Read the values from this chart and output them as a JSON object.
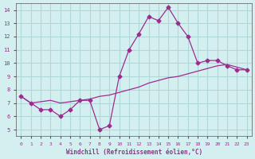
{
  "xlabel": "Windchill (Refroidissement éolien,°C)",
  "background_color": "#d4eff0",
  "grid_color": "#b0d8d8",
  "line_color": "#9b2d8e",
  "x_ticks": [
    0,
    1,
    2,
    3,
    4,
    5,
    6,
    7,
    8,
    9,
    10,
    11,
    12,
    13,
    14,
    15,
    16,
    17,
    18,
    19,
    20,
    21,
    22,
    23
  ],
  "y_ticks": [
    5,
    6,
    7,
    8,
    9,
    10,
    11,
    12,
    13,
    14
  ],
  "xlim": [
    -0.5,
    23.5
  ],
  "ylim": [
    4.5,
    14.5
  ],
  "line1_x": [
    0,
    1,
    2,
    3,
    4,
    5,
    6,
    7,
    8,
    9,
    10,
    11,
    12,
    13,
    14,
    15,
    16,
    17,
    18,
    19,
    20,
    21,
    22,
    23
  ],
  "line1_y": [
    7.5,
    7.0,
    6.5,
    6.5,
    6.0,
    6.5,
    7.2,
    7.2,
    5.0,
    5.3,
    9.0,
    11.0,
    12.2,
    13.5,
    13.2,
    14.2,
    13.0,
    12.0,
    10.0,
    10.2,
    10.2,
    9.8,
    9.5,
    9.5
  ],
  "line2_x": [
    0,
    1,
    2,
    3,
    4,
    5,
    6,
    7,
    8,
    9,
    10,
    11,
    12,
    13,
    14,
    15,
    16,
    17,
    18,
    19,
    20,
    21,
    22,
    23
  ],
  "line2_y": [
    7.5,
    7.0,
    7.1,
    7.2,
    7.0,
    7.1,
    7.2,
    7.3,
    7.5,
    7.6,
    7.8,
    8.0,
    8.2,
    8.5,
    8.7,
    8.9,
    9.0,
    9.2,
    9.4,
    9.6,
    9.8,
    9.9,
    9.7,
    9.5
  ]
}
